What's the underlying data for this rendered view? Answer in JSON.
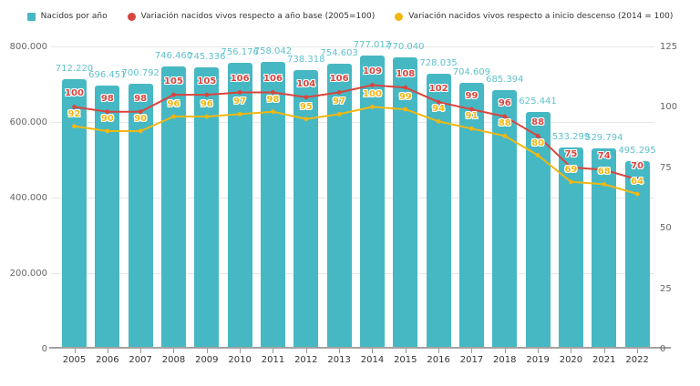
{
  "chart_data": {
    "type": "bar",
    "categories": [
      "2005",
      "2006",
      "2007",
      "2008",
      "2009",
      "2010",
      "2011",
      "2012",
      "2013",
      "2014",
      "2015",
      "2016",
      "2017",
      "2018",
      "2019",
      "2020",
      "2021",
      "2022"
    ],
    "series": [
      {
        "name": "Nacidos por año",
        "type": "bar",
        "axis": "left",
        "color": "#46b8c3",
        "label_color": "#5fc2cc",
        "values": [
          712220,
          696451,
          700792,
          746460,
          745336,
          756176,
          758042,
          738318,
          754603,
          777012,
          770040,
          728035,
          704609,
          685394,
          625441,
          533299,
          529794,
          495295
        ],
        "values_formatted": [
          "712.220",
          "696.451",
          "700.792",
          "746.460",
          "745.336",
          "756.176",
          "758.042",
          "738.318",
          "754.603",
          "777.012",
          "770.040",
          "728.035",
          "704.609",
          "685.394",
          "625.441",
          "533.299",
          "529.794",
          "495.295"
        ]
      },
      {
        "name": "Variación nacidos vivos respecto a año base (2005=100)",
        "type": "line",
        "axis": "right",
        "color": "#d9453f",
        "values": [
          100,
          98,
          98,
          105,
          105,
          106,
          106,
          104,
          106,
          109,
          108,
          102,
          99,
          96,
          88,
          75,
          74,
          70
        ]
      },
      {
        "name": "Variación nacidos vivos respecto a inicio descenso (2014 = 100)",
        "type": "line",
        "axis": "right",
        "color": "#f2b712",
        "values": [
          92,
          90,
          90,
          96,
          96,
          97,
          98,
          95,
          97,
          100,
          99,
          94,
          91,
          88,
          80,
          69,
          68,
          64
        ]
      }
    ],
    "left_axis": {
      "min": 0,
      "max": 800000,
      "step": 200000,
      "tick_labels": [
        "0",
        "200.000",
        "400.000",
        "600.000",
        "800.000"
      ]
    },
    "right_axis": {
      "min": 0,
      "max": 125,
      "step": 25,
      "tick_labels": [
        "0",
        "25",
        "50",
        "75",
        "100",
        "125"
      ]
    },
    "grid": "horizontal",
    "legend_position": "top-center"
  },
  "colors": {
    "grid": "#e7e7e7",
    "axis_line": "#a3a3a3",
    "axis_text": "#666666",
    "category_text": "#333333",
    "background": "#ffffff"
  }
}
